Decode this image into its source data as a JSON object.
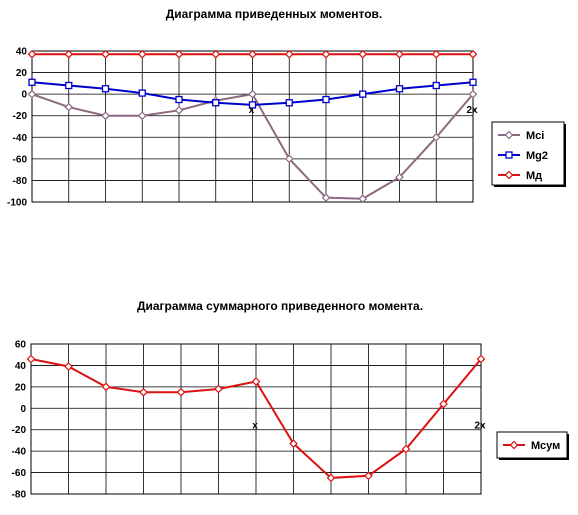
{
  "chart_data": [
    {
      "type": "line",
      "title": "Диаграмма приведенных моментов.",
      "ylim": [
        -100,
        40
      ],
      "yticks": [
        "40",
        "20",
        "0",
        "-20",
        "-40",
        "-60",
        "-80",
        "-100"
      ],
      "grid": true,
      "legend_position": "right",
      "x": [
        0,
        1,
        2,
        3,
        4,
        5,
        6,
        7,
        8,
        9,
        10,
        11,
        12
      ],
      "series": [
        {
          "name": "Mci",
          "color": "#8c6a82",
          "marker": "diamond",
          "values": [
            0,
            -12,
            -20,
            -20,
            -15,
            -6,
            0,
            -60,
            -96,
            -97,
            -77,
            -40,
            0
          ]
        },
        {
          "name": "Mg2",
          "color": "#0000cc",
          "marker": "square",
          "values": [
            11,
            8,
            5,
            1,
            -5,
            -8,
            -10,
            -8,
            -5,
            0,
            5,
            8,
            11
          ]
        },
        {
          "name": "Mд",
          "color": "#dd1111",
          "marker": "diamond",
          "values": [
            37,
            37,
            37,
            37,
            37,
            37,
            37,
            37,
            37,
            37,
            37,
            37,
            37
          ]
        }
      ],
      "annotations": [
        {
          "text": "x",
          "x": 6,
          "y": -14
        },
        {
          "text": "2x",
          "x": 12,
          "y": -14
        }
      ]
    },
    {
      "type": "line",
      "title": "Диаграмма суммарного приведенного момента.",
      "ylim": [
        -80,
        60
      ],
      "yticks": [
        "60",
        "40",
        "20",
        "0",
        "-20",
        "-40",
        "-60",
        "-80"
      ],
      "grid": true,
      "legend_position": "right",
      "x": [
        0,
        1,
        2,
        3,
        4,
        5,
        6,
        7,
        8,
        9,
        10,
        11,
        12
      ],
      "series": [
        {
          "name": "Мсум",
          "color": "#dd1111",
          "marker": "diamond",
          "values": [
            46,
            39,
            20,
            15,
            15,
            18,
            25,
            -33,
            -65,
            -63,
            -38,
            4,
            46
          ]
        }
      ],
      "annotations": [
        {
          "text": "x",
          "x": 6,
          "y": -15
        },
        {
          "text": "2x",
          "x": 12,
          "y": -15
        }
      ]
    }
  ]
}
